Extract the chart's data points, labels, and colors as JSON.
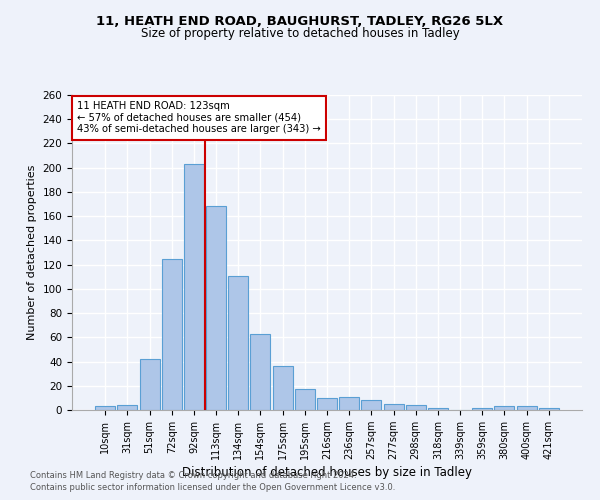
{
  "title1": "11, HEATH END ROAD, BAUGHURST, TADLEY, RG26 5LX",
  "title2": "Size of property relative to detached houses in Tadley",
  "xlabel": "Distribution of detached houses by size in Tadley",
  "ylabel": "Number of detached properties",
  "categories": [
    "10sqm",
    "31sqm",
    "51sqm",
    "72sqm",
    "92sqm",
    "113sqm",
    "134sqm",
    "154sqm",
    "175sqm",
    "195sqm",
    "216sqm",
    "236sqm",
    "257sqm",
    "277sqm",
    "298sqm",
    "318sqm",
    "339sqm",
    "359sqm",
    "380sqm",
    "400sqm",
    "421sqm"
  ],
  "values": [
    3,
    4,
    42,
    125,
    203,
    168,
    111,
    63,
    36,
    17,
    10,
    11,
    8,
    5,
    4,
    2,
    0,
    2,
    3,
    3,
    2
  ],
  "bar_color": "#aec6e8",
  "bar_edge_color": "#5a9fd4",
  "marker_index": 5,
  "marker_label": "11 HEATH END ROAD: 123sqm",
  "annotation_lines": [
    "← 57% of detached houses are smaller (454)",
    "43% of semi-detached houses are larger (343) →"
  ],
  "marker_color": "#cc0000",
  "ylim": [
    0,
    260
  ],
  "yticks": [
    0,
    20,
    40,
    60,
    80,
    100,
    120,
    140,
    160,
    180,
    200,
    220,
    240,
    260
  ],
  "footnote1": "Contains HM Land Registry data © Crown copyright and database right 2024.",
  "footnote2": "Contains public sector information licensed under the Open Government Licence v3.0.",
  "bg_color": "#eef2fa",
  "grid_color": "#ffffff"
}
